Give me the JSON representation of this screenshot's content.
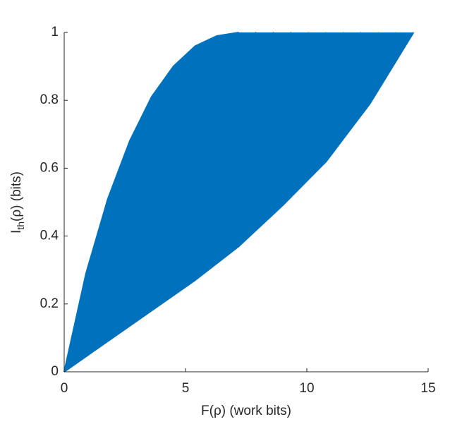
{
  "chart_data": {
    "type": "line",
    "xlabel": "F(ρ) (work bits)",
    "ylabel": [
      "I",
      "th",
      "(ρ) (bits)"
    ],
    "xlim": [
      0,
      15
    ],
    "ylim": [
      0,
      1
    ],
    "xticks": [
      0,
      5,
      10,
      15
    ],
    "yticks": [
      0,
      0.2,
      0.4,
      0.6,
      0.8,
      1
    ],
    "fill": true,
    "series": [
      {
        "color": "#0072bd",
        "x": [
          0,
          0.9,
          1.8,
          2.7,
          3.6,
          4.5,
          5.4,
          6.3,
          7.2
        ],
        "values": [
          0,
          0.29,
          0.51,
          0.68,
          0.81,
          0.9,
          0.96,
          0.99,
          1
        ]
      },
      {
        "color": "#0072bd",
        "x": [
          0,
          0.99,
          1.98,
          2.97,
          3.96,
          4.95,
          5.94,
          6.93,
          7.92
        ],
        "values": [
          0,
          0.27,
          0.477,
          0.639,
          0.766,
          0.859,
          0.926,
          0.97,
          1
        ]
      },
      {
        "color": "#0072bd",
        "x": [
          0,
          1.08,
          2.16,
          3.24,
          4.32,
          5.4,
          6.48,
          7.56,
          8.64
        ],
        "values": [
          0,
          0.25,
          0.444,
          0.598,
          0.722,
          0.818,
          0.892,
          0.95,
          1
        ]
      },
      {
        "color": "#0072bd",
        "x": [
          0,
          1.17,
          2.34,
          3.51,
          4.68,
          5.85,
          7.02,
          8.19,
          9.36
        ],
        "values": [
          0,
          0.23,
          0.411,
          0.557,
          0.678,
          0.777,
          0.858,
          0.93,
          1
        ]
      },
      {
        "color": "#0072bd",
        "x": [
          0,
          1.26,
          2.52,
          3.78,
          5.04,
          6.3,
          7.56,
          8.82,
          10.08
        ],
        "values": [
          0,
          0.21,
          0.378,
          0.516,
          0.634,
          0.736,
          0.824,
          0.91,
          1
        ]
      },
      {
        "color": "#0072bd",
        "x": [
          0,
          1.35,
          2.7,
          4.05,
          5.4,
          6.75,
          8.1,
          9.45,
          10.8
        ],
        "values": [
          0,
          0.19,
          0.345,
          0.475,
          0.59,
          0.695,
          0.79,
          0.89,
          1
        ]
      },
      {
        "color": "#0072bd",
        "x": [
          0,
          1.44,
          2.88,
          4.32,
          5.76,
          7.2,
          8.64,
          10.08,
          11.52
        ],
        "values": [
          0,
          0.17,
          0.312,
          0.434,
          0.546,
          0.654,
          0.756,
          0.87,
          1
        ]
      },
      {
        "color": "#0072bd",
        "x": [
          0,
          1.53,
          3.06,
          4.59,
          6.12,
          7.65,
          9.18,
          10.71,
          12.24
        ],
        "values": [
          0,
          0.15,
          0.279,
          0.393,
          0.502,
          0.613,
          0.722,
          0.85,
          1
        ]
      },
      {
        "color": "#0072bd",
        "x": [
          0,
          1.62,
          3.24,
          4.86,
          6.48,
          8.1,
          9.72,
          11.34,
          12.96
        ],
        "values": [
          0,
          0.13,
          0.246,
          0.352,
          0.458,
          0.572,
          0.688,
          0.83,
          1
        ]
      },
      {
        "color": "#0072bd",
        "x": [
          0,
          1.71,
          3.42,
          5.13,
          6.84,
          8.55,
          10.26,
          11.97,
          13.68
        ],
        "values": [
          0,
          0.11,
          0.213,
          0.311,
          0.414,
          0.531,
          0.654,
          0.81,
          1
        ]
      },
      {
        "color": "#0072bd",
        "x": [
          0,
          1.8,
          3.6,
          5.4,
          7.2,
          9,
          10.8,
          12.6,
          14.4
        ],
        "values": [
          0,
          0.09,
          0.18,
          0.27,
          0.37,
          0.49,
          0.62,
          0.79,
          1
        ]
      }
    ]
  }
}
